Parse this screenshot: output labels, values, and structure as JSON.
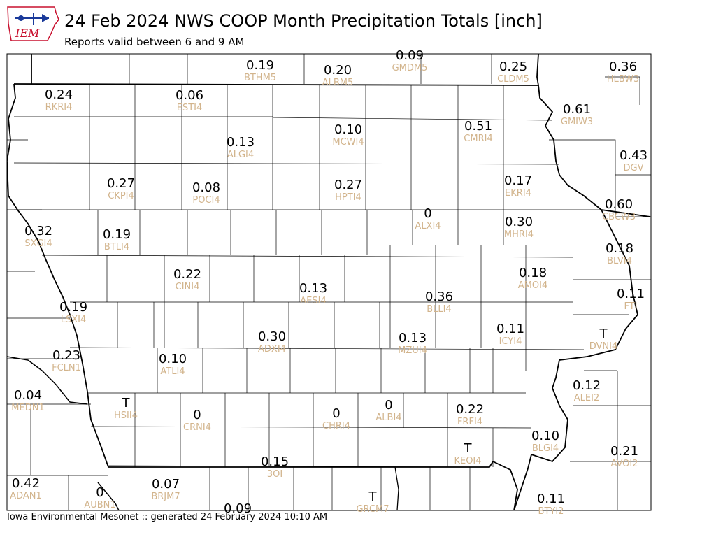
{
  "header": {
    "title": "24 Feb 2024 NWS COOP Month Precipitation Totals [inch]",
    "subtitle": "Reports valid between 6 and 9 AM",
    "logo_text": "IEM"
  },
  "footer": {
    "text": "Iowa Environmental Mesonet :: generated 24 February 2024 10:10 AM"
  },
  "colors": {
    "station_id": "#d2b48c",
    "value": "#000000",
    "county_line": "#000000",
    "logo_red": "#c8102e",
    "logo_blue": "#1a3a9a"
  },
  "stations": [
    {
      "value": "0.19",
      "id": "BTHM5"
    },
    {
      "value": "0.20",
      "id": "ALBM5"
    },
    {
      "value": "0.09",
      "id": "GMDM5"
    },
    {
      "value": "0.25",
      "id": "CLDM5"
    },
    {
      "value": "0.36",
      "id": "HLBW3"
    },
    {
      "value": "0.24",
      "id": "RKRI4"
    },
    {
      "value": "0.06",
      "id": "ESTI4"
    },
    {
      "value": "0.61",
      "id": "GMIW3"
    },
    {
      "value": "0.13",
      "id": "ALGI4"
    },
    {
      "value": "0.10",
      "id": "MCWI4"
    },
    {
      "value": "0.51",
      "id": "CMRI4"
    },
    {
      "value": "0.43",
      "id": "DGV"
    },
    {
      "value": "0.27",
      "id": "CKPI4"
    },
    {
      "value": "0.08",
      "id": "POCI4"
    },
    {
      "value": "0.27",
      "id": "HPTI4"
    },
    {
      "value": "0.17",
      "id": "EKRI4"
    },
    {
      "value": "0.60",
      "id": "CBCW3"
    },
    {
      "value": "0",
      "id": "ALXI4"
    },
    {
      "value": "0.32",
      "id": "SXGI4"
    },
    {
      "value": "0.19",
      "id": "BTLI4"
    },
    {
      "value": "0.30",
      "id": "MHRI4"
    },
    {
      "value": "0.18",
      "id": "BLVI4"
    },
    {
      "value": "0.22",
      "id": "CINI4"
    },
    {
      "value": "0.18",
      "id": "AMOI4"
    },
    {
      "value": "0.13",
      "id": "AESI4"
    },
    {
      "value": "0.36",
      "id": "BLLI4"
    },
    {
      "value": "0.11",
      "id": "FTI"
    },
    {
      "value": "0.19",
      "id": "LSXI4"
    },
    {
      "value": "0.11",
      "id": "ICYI4"
    },
    {
      "value": "T",
      "id": "DVNI4"
    },
    {
      "value": "0.30",
      "id": "ADXI4"
    },
    {
      "value": "0.13",
      "id": "MZUI4"
    },
    {
      "value": "0.23",
      "id": "FCLN1"
    },
    {
      "value": "0.10",
      "id": "ATLI4"
    },
    {
      "value": "0.12",
      "id": "ALEI2"
    },
    {
      "value": "0.04",
      "id": "MEDN1"
    },
    {
      "value": "T",
      "id": "HSII4"
    },
    {
      "value": "0",
      "id": "CRNI4"
    },
    {
      "value": "0",
      "id": "CHRI4"
    },
    {
      "value": "0",
      "id": "ALBI4"
    },
    {
      "value": "0.22",
      "id": "FRFI4"
    },
    {
      "value": "T",
      "id": "KEOI4"
    },
    {
      "value": "0.10",
      "id": "BLGI4"
    },
    {
      "value": "0.21",
      "id": "AVOI2"
    },
    {
      "value": "0.15",
      "id": "3OI"
    },
    {
      "value": "0.42",
      "id": "ADAN1"
    },
    {
      "value": "0",
      "id": "AUBN1"
    },
    {
      "value": "0.07",
      "id": "BRJM7"
    },
    {
      "value": "0.09",
      "id": ""
    },
    {
      "value": "T",
      "id": "GRCM7"
    },
    {
      "value": "0.11",
      "id": "BTYI2"
    }
  ]
}
